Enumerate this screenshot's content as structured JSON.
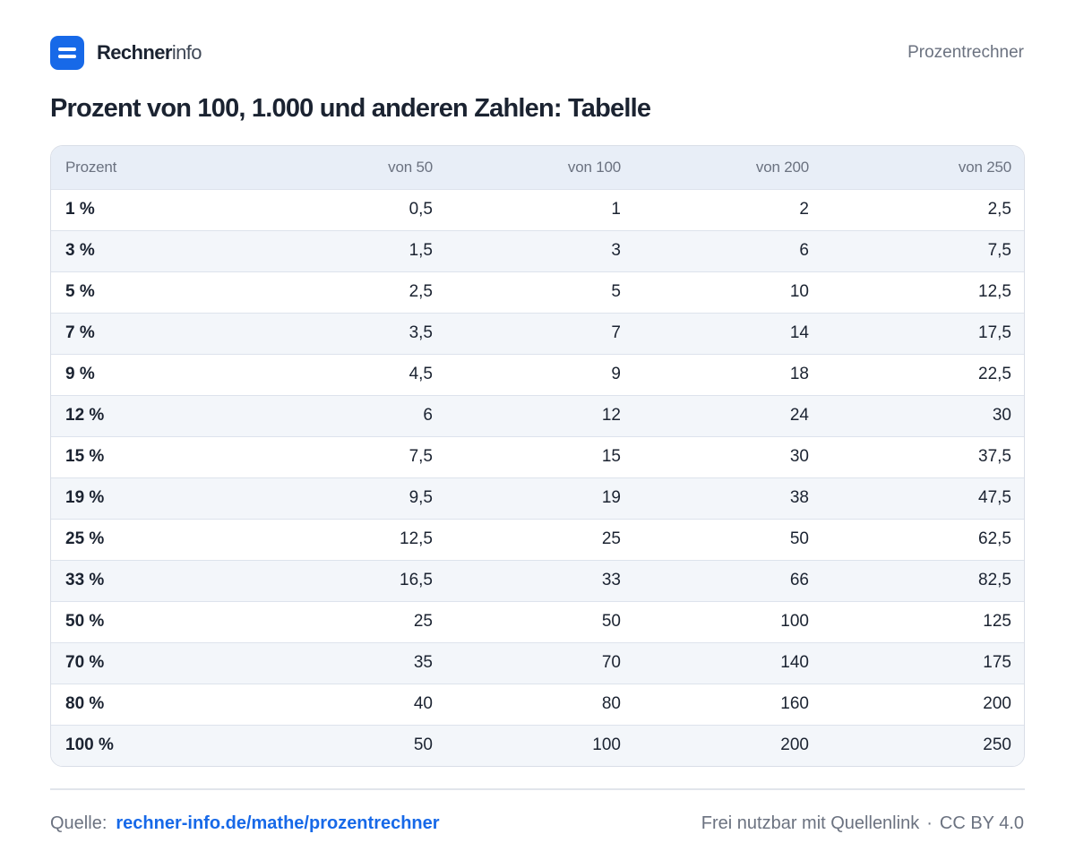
{
  "brand": {
    "name_bold": "Rechner",
    "name_light": "info"
  },
  "header": {
    "right_label": "Prozentrechner"
  },
  "title": "Prozent von 100, 1.000 und anderen Zahlen: Tabelle",
  "table": {
    "columns": [
      "Prozent",
      "von 50",
      "von 100",
      "von 200",
      "von 250"
    ],
    "rows": [
      [
        "1 %",
        "0,5",
        "1",
        "2",
        "2,5"
      ],
      [
        "3 %",
        "1,5",
        "3",
        "6",
        "7,5"
      ],
      [
        "5 %",
        "2,5",
        "5",
        "10",
        "12,5"
      ],
      [
        "7 %",
        "3,5",
        "7",
        "14",
        "17,5"
      ],
      [
        "9 %",
        "4,5",
        "9",
        "18",
        "22,5"
      ],
      [
        "12 %",
        "6",
        "12",
        "24",
        "30"
      ],
      [
        "15 %",
        "7,5",
        "15",
        "30",
        "37,5"
      ],
      [
        "19 %",
        "9,5",
        "19",
        "38",
        "47,5"
      ],
      [
        "25 %",
        "12,5",
        "25",
        "50",
        "62,5"
      ],
      [
        "33 %",
        "16,5",
        "33",
        "66",
        "82,5"
      ],
      [
        "50 %",
        "25",
        "50",
        "100",
        "125"
      ],
      [
        "70 %",
        "35",
        "70",
        "140",
        "175"
      ],
      [
        "80 %",
        "40",
        "80",
        "160",
        "200"
      ],
      [
        "100 %",
        "50",
        "100",
        "200",
        "250"
      ]
    ]
  },
  "footer": {
    "source_label": "Quelle:",
    "source_link": "rechner-info.de/mathe/prozentrechner",
    "license_text": "Frei nutzbar mit Quellenlink",
    "separator": "·",
    "license": "CC BY 4.0"
  },
  "colors": {
    "accent": "#1769e8",
    "header_bg": "#e8eef7",
    "row_alt": "#f3f6fa",
    "text": "#1b2331",
    "muted": "#6b7280"
  },
  "icons": {
    "logo": "equals-icon"
  }
}
